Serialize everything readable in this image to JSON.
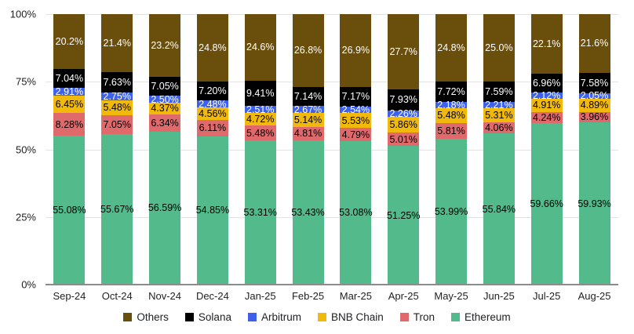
{
  "chart_data": {
    "type": "bar",
    "variant": "stacked-100-percent-columns",
    "title": "",
    "xlabel": "",
    "ylabel": "",
    "categories": [
      "Sep-24",
      "Oct-24",
      "Nov-24",
      "Dec-24",
      "Jan-25",
      "Feb-25",
      "Mar-25",
      "Apr-25",
      "May-25",
      "Jun-25",
      "Jul-25",
      "Aug-25"
    ],
    "series": [
      {
        "name": "Ethereum",
        "color": "#52ba8b",
        "label_color": "#000000",
        "values": [
          55.08,
          55.67,
          56.59,
          54.85,
          53.31,
          53.43,
          53.08,
          51.25,
          53.99,
          55.84,
          59.66,
          59.93
        ],
        "labels": [
          "55.08%",
          "55.67%",
          "56.59%",
          "54.85%",
          "53.31%",
          "53.43%",
          "53.08%",
          "51.25%",
          "53.99%",
          "55.84%",
          "59.66%",
          "59.93%"
        ]
      },
      {
        "name": "Tron",
        "color": "#e0696c",
        "label_color": "#000000",
        "values": [
          8.28,
          7.05,
          6.34,
          6.11,
          5.48,
          4.81,
          4.79,
          5.01,
          5.81,
          4.06,
          4.24,
          3.96
        ],
        "labels": [
          "8.28%",
          "7.05%",
          "6.34%",
          "6.11%",
          "5.48%",
          "4.81%",
          "4.79%",
          "5.01%",
          "5.81%",
          "4.06%",
          "4.24%",
          "3.96%"
        ]
      },
      {
        "name": "BNB Chain",
        "color": "#f0b90b",
        "label_color": "#000000",
        "values": [
          6.45,
          5.48,
          4.37,
          4.56,
          4.72,
          5.14,
          5.53,
          5.86,
          5.48,
          5.31,
          4.91,
          4.89
        ],
        "labels": [
          "6.45%",
          "5.48%",
          "4.37%",
          "4.56%",
          "4.72%",
          "5.14%",
          "5.53%",
          "5.86%",
          "5.48%",
          "5.31%",
          "4.91%",
          "4.89%"
        ]
      },
      {
        "name": "Arbitrum",
        "color": "#3e61ec",
        "label_color": "#ffffff",
        "values": [
          2.91,
          2.75,
          2.5,
          2.48,
          2.51,
          2.67,
          2.54,
          2.26,
          2.18,
          2.21,
          2.12,
          2.05
        ],
        "labels": [
          "2.91%",
          "2.75%",
          "2.50%",
          "2.48%",
          "2.51%",
          "2.67%",
          "2.54%",
          "2.26%",
          "2.18%",
          "2.21%",
          "2.12%",
          "2.05%"
        ]
      },
      {
        "name": "Solana",
        "color": "#000000",
        "label_color": "#ffffff",
        "values": [
          7.04,
          7.63,
          7.05,
          7.2,
          9.41,
          7.14,
          7.17,
          7.93,
          7.72,
          7.59,
          6.96,
          7.58
        ],
        "labels": [
          "7.04%",
          "7.63%",
          "7.05%",
          "7.20%",
          "9.41%",
          "7.14%",
          "7.17%",
          "7.93%",
          "7.72%",
          "7.59%",
          "6.96%",
          "7.58%"
        ]
      },
      {
        "name": "Others",
        "color": "#6a4e0c",
        "label_color": "#ffffff",
        "values": [
          20.2,
          21.4,
          23.2,
          24.8,
          24.6,
          26.8,
          26.9,
          27.7,
          24.8,
          25.0,
          22.1,
          21.6
        ],
        "labels": [
          "20.2%",
          "21.4%",
          "23.2%",
          "24.8%",
          "24.6%",
          "26.8%",
          "26.9%",
          "27.7%",
          "24.8%",
          "25.0%",
          "22.1%",
          "21.6%"
        ]
      }
    ],
    "y_axis": {
      "range": [
        0,
        100
      ],
      "ticks": [
        {
          "value": 0,
          "label": "0%"
        },
        {
          "value": 25,
          "label": "25%"
        },
        {
          "value": 50,
          "label": "50%"
        },
        {
          "value": 75,
          "label": "75%"
        },
        {
          "value": 100,
          "label": "100%"
        }
      ],
      "grid": true,
      "gridline_color": "#e3e3e3",
      "baseline_color": "#8c8c8c"
    },
    "legend": {
      "position": "bottom",
      "order": [
        "Others",
        "Solana",
        "Arbitrum",
        "BNB Chain",
        "Tron",
        "Ethereum"
      ]
    }
  }
}
